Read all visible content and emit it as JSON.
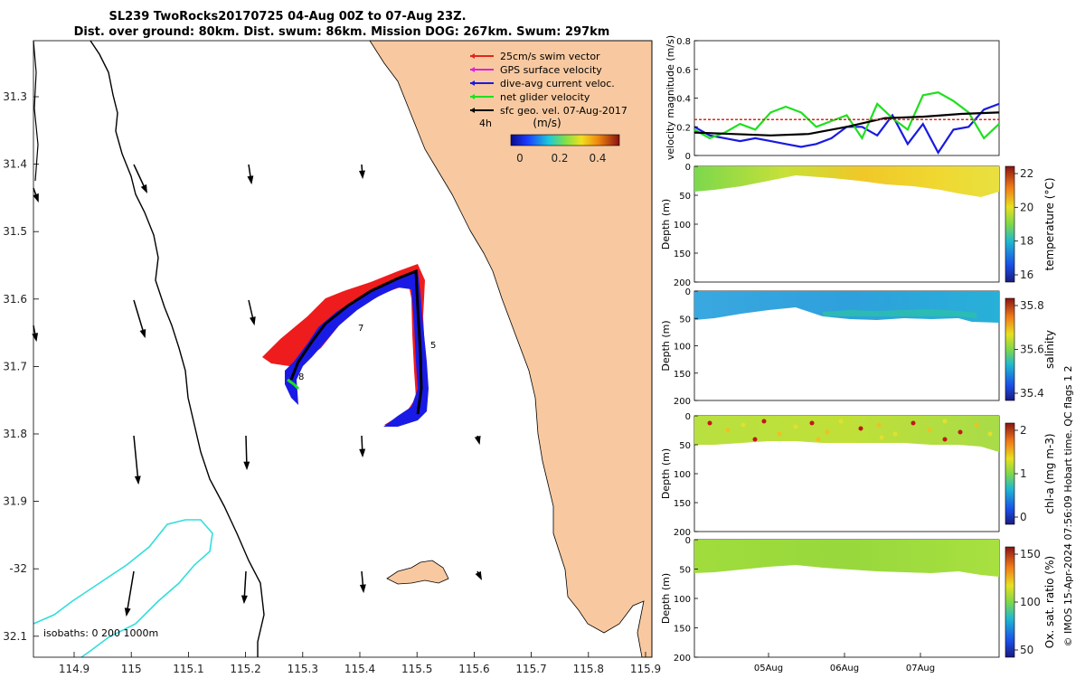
{
  "header": {
    "line1": "SL239 TwoRocks20170725 04-Aug 00Z to 07-Aug 23Z.",
    "line2": "Dist. over ground: 80km. Dist. swum: 86km. Mission DOG: 267km. Swum: 297km"
  },
  "map": {
    "xlabels": [
      "114.9",
      "115",
      "115.1",
      "115.2",
      "115.3",
      "115.4",
      "115.5",
      "115.6",
      "115.7",
      "115.8",
      "115.9"
    ],
    "ylabels": [
      "31.3",
      "31.4",
      "31.5",
      "31.6",
      "31.7",
      "31.8",
      "31.9",
      "-32",
      "32.1"
    ],
    "legend": [
      {
        "label": "25cm/s swim vector",
        "color": "#e0261c"
      },
      {
        "label": "GPS surface velocity",
        "color": "#e020e0"
      },
      {
        "label": "dive-avg current veloc.",
        "color": "#1a1ae0"
      },
      {
        "label": "net glider velocity",
        "color": "#1ee01e"
      },
      {
        "label": "sfc geo. vel. 07-Aug-2017",
        "color": "#000000"
      }
    ],
    "time_label": "4h",
    "colorbar": {
      "label": "(m/s)",
      "ticks": [
        "0",
        "0.2",
        "0.4"
      ]
    },
    "isobaths_label": "isobaths: 0   200  1000m",
    "day_labels": [
      "5",
      "7",
      "8"
    ],
    "colors": {
      "land": "#f8c9a0",
      "ocean": "#ffffff",
      "isobath200": "#000000",
      "isobath1000": "#33dddd",
      "track_red": "#ee1c1c",
      "track_blue": "#1a1ae6"
    }
  },
  "chart_data": [
    {
      "type": "line",
      "title": "",
      "ylabel": "velocity magnitude (m/s)",
      "ylim": [
        0,
        0.8
      ],
      "yticks": [
        "0",
        "0.2",
        "0.4",
        "0.6",
        "0.8"
      ],
      "xlim": [
        0,
        4
      ],
      "series": [
        {
          "name": "dive-avg current",
          "color": "#1a1ae0",
          "x": [
            0,
            0.2,
            0.4,
            0.6,
            0.8,
            1.0,
            1.2,
            1.4,
            1.6,
            1.8,
            2.0,
            2.2,
            2.4,
            2.6,
            2.8,
            3.0,
            3.2,
            3.4,
            3.6,
            3.8,
            4.0
          ],
          "y": [
            0.2,
            0.14,
            0.12,
            0.1,
            0.12,
            0.1,
            0.08,
            0.06,
            0.08,
            0.12,
            0.2,
            0.2,
            0.14,
            0.28,
            0.08,
            0.22,
            0.02,
            0.18,
            0.2,
            0.32,
            0.36
          ]
        },
        {
          "name": "net glider",
          "color": "#1ee01e",
          "x": [
            0,
            0.2,
            0.4,
            0.6,
            0.8,
            1.0,
            1.2,
            1.4,
            1.6,
            1.8,
            2.0,
            2.2,
            2.4,
            2.6,
            2.8,
            3.0,
            3.2,
            3.4,
            3.6,
            3.8,
            4.0
          ],
          "y": [
            0.18,
            0.12,
            0.16,
            0.22,
            0.18,
            0.3,
            0.34,
            0.3,
            0.2,
            0.24,
            0.28,
            0.12,
            0.36,
            0.26,
            0.18,
            0.42,
            0.44,
            0.38,
            0.3,
            0.12,
            0.22
          ]
        },
        {
          "name": "sfc geo",
          "color": "#000000",
          "x": [
            0,
            0.5,
            1.0,
            1.5,
            2.0,
            2.5,
            3.0,
            3.5,
            4.0
          ],
          "y": [
            0.16,
            0.15,
            0.14,
            0.15,
            0.2,
            0.26,
            0.27,
            0.29,
            0.3
          ]
        },
        {
          "name": "swim",
          "color": "#e0261c",
          "x": [
            0,
            4
          ],
          "y": [
            0.25,
            0.25
          ]
        }
      ]
    },
    {
      "type": "heatmap",
      "ylabel": "Depth (m)",
      "ylim": [
        0,
        200
      ],
      "yticks": [
        "0",
        "50",
        "100",
        "150",
        "200"
      ],
      "colorbar_label": "temperature (°C)",
      "colorbar_ticks": [
        "22",
        "20",
        "18",
        "16"
      ],
      "clim": [
        15.6,
        22.2
      ]
    },
    {
      "type": "heatmap",
      "ylabel": "Depth (m)",
      "ylim": [
        0,
        200
      ],
      "yticks": [
        "0",
        "50",
        "100",
        "150",
        "200"
      ],
      "colorbar_label": "salinity",
      "colorbar_ticks": [
        "35.8",
        "35.6",
        "35.4"
      ],
      "clim": [
        35.25,
        35.95
      ]
    },
    {
      "type": "heatmap",
      "ylabel": "Depth (m)",
      "ylim": [
        0,
        200
      ],
      "yticks": [
        "0",
        "50",
        "100",
        "150",
        "200"
      ],
      "colorbar_label": "chl-a (mg m-3)",
      "colorbar_ticks": [
        "2",
        "1",
        "0"
      ],
      "clim": [
        0,
        2
      ]
    },
    {
      "type": "heatmap",
      "ylabel": "Depth (m)",
      "ylim": [
        0,
        200
      ],
      "yticks": [
        "0",
        "50",
        "100",
        "150",
        "200"
      ],
      "colorbar_label": "Ox. sat. ratio (%)",
      "colorbar_ticks": [
        "150",
        "100",
        "50"
      ],
      "clim": [
        25,
        175
      ],
      "xticks": [
        "05Aug",
        "06Aug",
        "07Aug"
      ]
    }
  ],
  "footer": {
    "copyright": "© IMOS 15-Apr-2024 07:56:09 Hobart time. QC flags 1  2"
  }
}
